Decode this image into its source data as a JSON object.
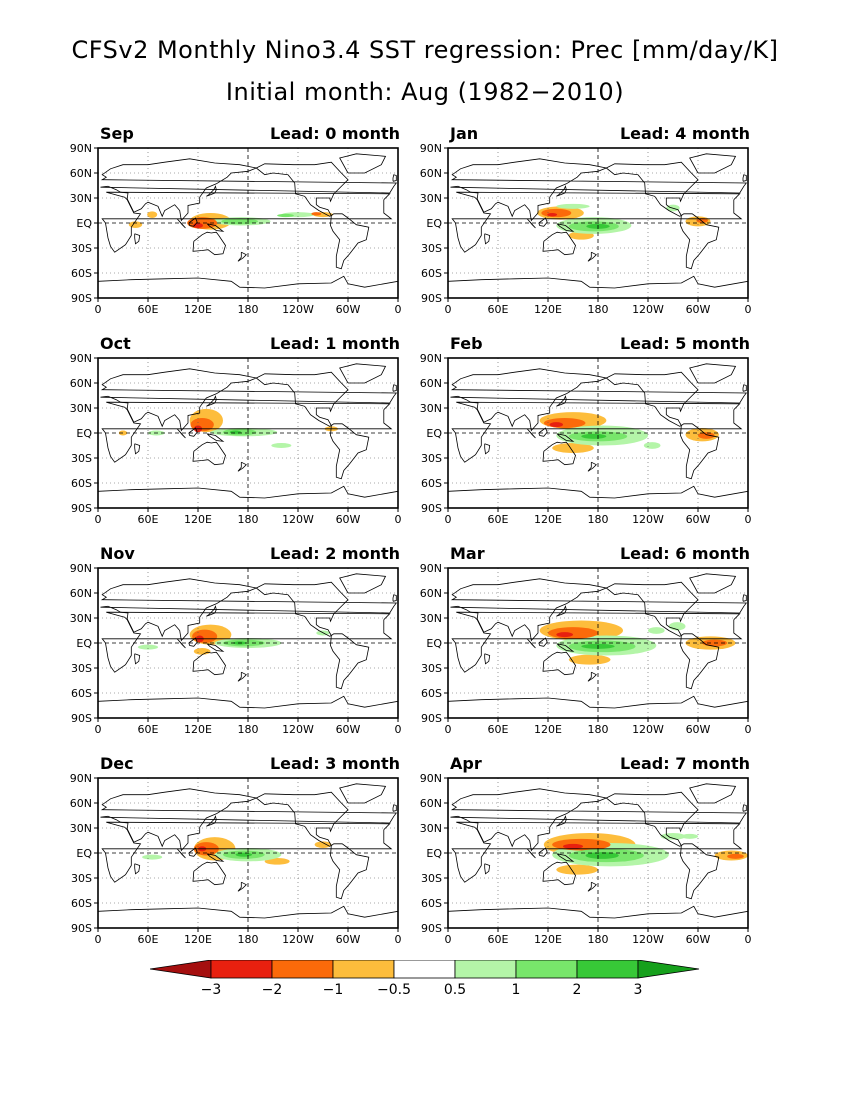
{
  "title": {
    "line1": "CFSv2 Monthly Nino3.4 SST regression: Prec [mm/day/K]",
    "line2": "Initial month: Aug (1982−2010)"
  },
  "axes": {
    "lat_labels": [
      "90N",
      "60N",
      "30N",
      "EQ",
      "30S",
      "60S",
      "90S"
    ],
    "lon_labels": [
      "0",
      "60E",
      "120E",
      "180",
      "120W",
      "60W",
      "0"
    ]
  },
  "panels": [
    {
      "month": "Sep",
      "lead": "Lead: 0 month"
    },
    {
      "month": "Jan",
      "lead": "Lead: 4 month"
    },
    {
      "month": "Oct",
      "lead": "Lead: 1 month"
    },
    {
      "month": "Feb",
      "lead": "Lead: 5 month"
    },
    {
      "month": "Nov",
      "lead": "Lead: 2 month"
    },
    {
      "month": "Mar",
      "lead": "Lead: 6 month"
    },
    {
      "month": "Dec",
      "lead": "Lead: 3 month"
    },
    {
      "month": "Apr",
      "lead": "Lead: 7 month"
    }
  ],
  "colorbar": {
    "labels": [
      "−3",
      "−2",
      "−1",
      "−0.5",
      "0.5",
      "1",
      "2",
      "3"
    ],
    "colors": [
      "#a50f0f",
      "#e8200f",
      "#fb6a0a",
      "#fdbd3c",
      "#ffffff",
      "#b4f5a8",
      "#78e66b",
      "#37c837",
      "#16a01c"
    ]
  },
  "colors": {
    "dry_strong": "#e8200f",
    "dry_mid": "#fb6a0a",
    "dry_weak": "#fdbd3c",
    "wet_weak": "#b4f5a8",
    "wet_mid": "#78e66b",
    "wet_strong": "#37c837"
  }
}
